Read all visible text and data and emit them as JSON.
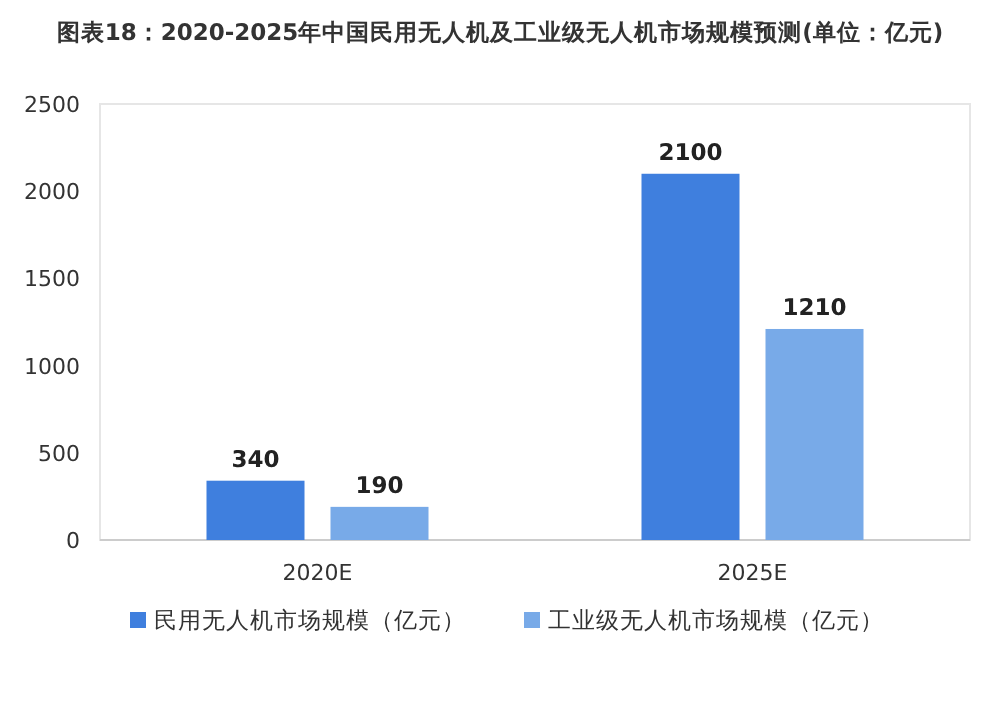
{
  "chart_data": {
    "type": "bar",
    "title": "图表18：2020-2025年中国民用无人机及工业级无人机市场规模预测(单位：亿元)",
    "categories": [
      "2020E",
      "2025E"
    ],
    "series": [
      {
        "name": "民用无人机市场规模（亿元）",
        "color": "#3f7fde",
        "values": [
          340,
          2100
        ]
      },
      {
        "name": "工业级无人机市场规模（亿元）",
        "color": "#78aae8",
        "values": [
          190,
          1210
        ]
      }
    ],
    "ylim": [
      0,
      2500
    ],
    "yticks": [
      0,
      500,
      1000,
      1500,
      2000,
      2500
    ],
    "data_labels": true,
    "legend": "bottom"
  }
}
